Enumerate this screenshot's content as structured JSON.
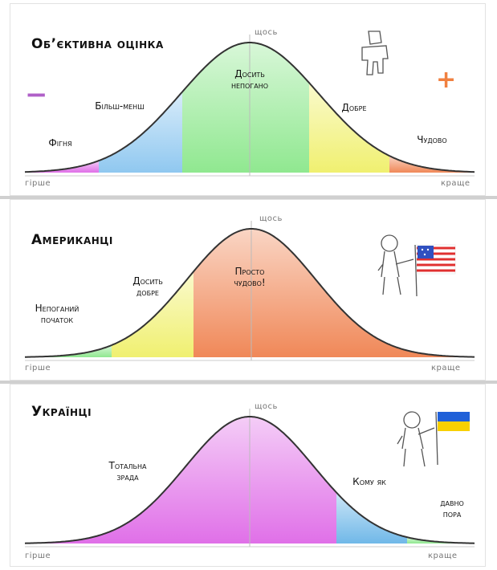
{
  "panels": [
    {
      "title": "Об’єктивна оцінка",
      "peak_label": "щось",
      "axis_left": "гірше",
      "axis_right": "краще",
      "minus_sign": "−",
      "plus_sign": "+",
      "segments": [
        {
          "label": "Фігня",
          "color": "#e070e8"
        },
        {
          "label": "Більш-менш",
          "color": "#90c8f0"
        },
        {
          "label": "Досить\nнепогано",
          "color": "#90e890"
        },
        {
          "label": "Добре",
          "color": "#f0f070"
        },
        {
          "label": "Чудово",
          "color": "#f08858"
        }
      ]
    },
    {
      "title": "Американці",
      "peak_label": "щось",
      "axis_left": "гірше",
      "axis_right": "краще",
      "segments": [
        {
          "label": "Непоганий\nпочаток",
          "color": "#90e890"
        },
        {
          "label": "Досить\nдобре",
          "color": "#f0f070"
        },
        {
          "label": "Просто\nчудово!",
          "color": "#f08858"
        }
      ]
    },
    {
      "title": "Українці",
      "peak_label": "щось",
      "axis_left": "гірше",
      "axis_right": "краще",
      "segments": [
        {
          "label": "Тотальна\nзрада",
          "color": "#e070e8"
        },
        {
          "label": "Кому як",
          "color": "#70b8e8"
        },
        {
          "label": "давно\nпора",
          "color": "#90e890"
        }
      ]
    }
  ],
  "colors": {
    "curve": "#333333",
    "minus": "#b060c8",
    "plus": "#f08040",
    "flag_blue": "#2060d8",
    "flag_yellow": "#f8d000",
    "us_red": "#e03030",
    "us_blue": "#3050c0"
  }
}
